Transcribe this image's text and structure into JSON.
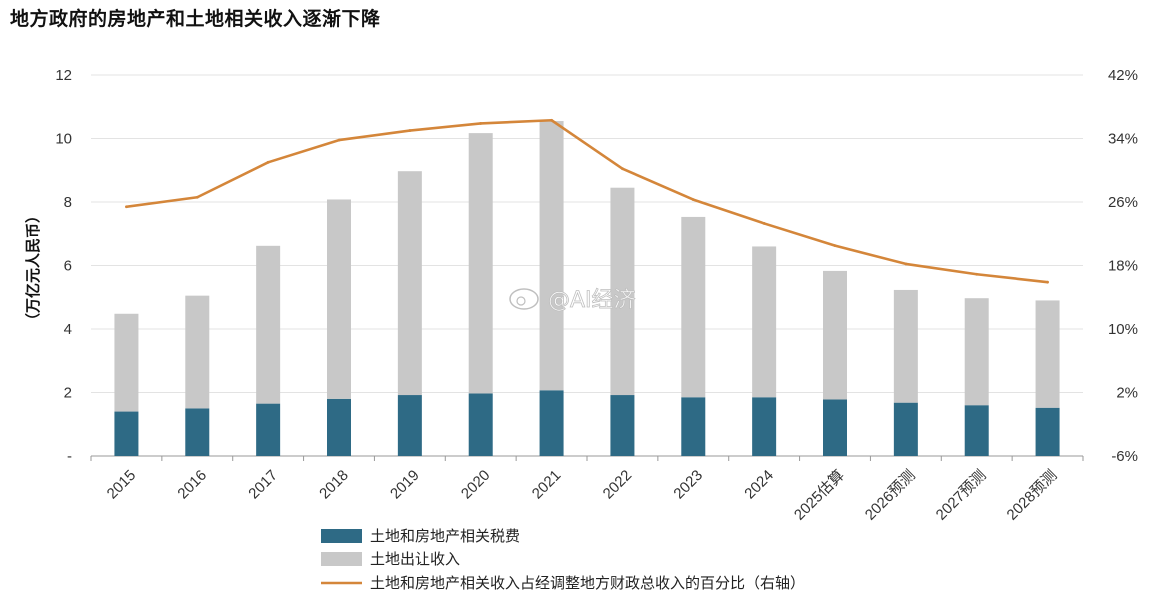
{
  "title": "地方政府的房地产和土地相关收入逐渐下降",
  "watermark": "@AI经济",
  "chart_data": {
    "type": "bar",
    "stacked": true,
    "title": "地方政府的房地产和土地相关收入逐渐下降",
    "ylabel": "（万亿元人民币）",
    "ylim": [
      0,
      12
    ],
    "y2lim": [
      -6,
      42
    ],
    "y_ticks": [
      "-",
      "2",
      "4",
      "6",
      "8",
      "10",
      "12"
    ],
    "y2_ticks": [
      "-6%",
      "2%",
      "10%",
      "18%",
      "26%",
      "34%",
      "42%"
    ],
    "categories": [
      "2015",
      "2016",
      "2017",
      "2018",
      "2019",
      "2020",
      "2021",
      "2022",
      "2023",
      "2024",
      "2025估算",
      "2026预测",
      "2027预测",
      "2028预测"
    ],
    "series": [
      {
        "name": "土地和房地产相关税费",
        "type": "bar",
        "color": "#2e6a85",
        "values": [
          1.4,
          1.5,
          1.65,
          1.8,
          1.92,
          1.97,
          2.07,
          1.92,
          1.85,
          1.85,
          1.78,
          1.68,
          1.6,
          1.52
        ]
      },
      {
        "name": "土地出让收入",
        "type": "bar",
        "color": "#c8c8c8",
        "values": [
          3.08,
          3.55,
          4.97,
          6.28,
          7.05,
          8.2,
          8.48,
          6.53,
          5.68,
          4.75,
          4.05,
          3.55,
          3.37,
          3.38
        ]
      },
      {
        "name": "土地和房地产相关收入占经调整地方财政总收入的百分比（右轴）",
        "type": "line",
        "axis": "right",
        "color": "#d4863a",
        "values": [
          25.4,
          26.6,
          31.0,
          33.8,
          35.0,
          35.9,
          36.3,
          30.2,
          26.3,
          23.3,
          20.5,
          18.2,
          16.9,
          15.9
        ]
      }
    ],
    "grid": true,
    "legend_position": "bottom"
  }
}
